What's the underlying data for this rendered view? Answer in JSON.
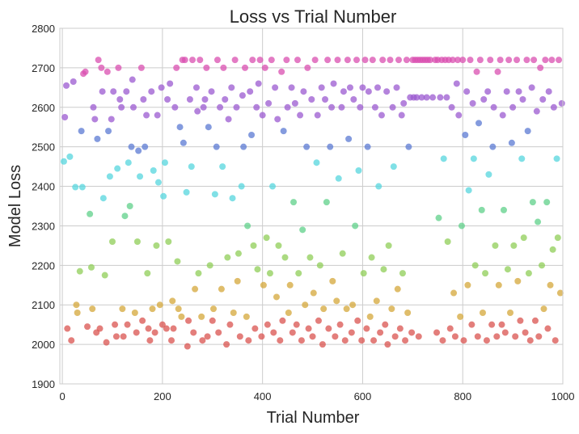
{
  "chart_data": {
    "type": "scatter",
    "title": "Loss vs Trial Number",
    "xlabel": "Trial Number",
    "ylabel": "Model Loss",
    "xlim": [
      -5,
      1000
    ],
    "ylim": [
      1900,
      2800
    ],
    "x_ticks": [
      0,
      200,
      400,
      600,
      800,
      1000
    ],
    "y_ticks": [
      1900,
      2000,
      2100,
      2200,
      2300,
      2400,
      2500,
      2600,
      2700,
      2800
    ],
    "grid": true,
    "legend": "none",
    "colors": {
      "background": "#ffffff",
      "grid": "#cccccc",
      "frame": "#cccccc",
      "text": "#262626",
      "band_2000": "#d9534f",
      "band_2100": "#d4a73a",
      "band_2200": "#8fce57",
      "band_2300": "#5fd08a",
      "band_2400": "#55d6dd",
      "band_2500": "#5b7ad3",
      "band_2600": "#9b59d0",
      "band_2700": "#d94fb0"
    },
    "points": [
      [
        3,
        2463
      ],
      [
        5,
        2575
      ],
      [
        8,
        2655
      ],
      [
        10,
        2040
      ],
      [
        15,
        2475
      ],
      [
        18,
        2010
      ],
      [
        22,
        2665
      ],
      [
        26,
        2398
      ],
      [
        28,
        2100
      ],
      [
        30,
        2080
      ],
      [
        35,
        2185
      ],
      [
        38,
        2540
      ],
      [
        40,
        2398
      ],
      [
        42,
        2685
      ],
      [
        46,
        2690
      ],
      [
        50,
        2045
      ],
      [
        55,
        2330
      ],
      [
        58,
        2195
      ],
      [
        60,
        2090
      ],
      [
        62,
        2600
      ],
      [
        65,
        2570
      ],
      [
        68,
        2030
      ],
      [
        70,
        2520
      ],
      [
        72,
        2720
      ],
      [
        75,
        2040
      ],
      [
        78,
        2700
      ],
      [
        80,
        2640
      ],
      [
        82,
        2370
      ],
      [
        85,
        2175
      ],
      [
        88,
        2005
      ],
      [
        90,
        2690
      ],
      [
        92,
        2540
      ],
      [
        95,
        2425
      ],
      [
        98,
        2570
      ],
      [
        100,
        2260
      ],
      [
        102,
        2640
      ],
      [
        105,
        2050
      ],
      [
        108,
        2020
      ],
      [
        110,
        2445
      ],
      [
        112,
        2700
      ],
      [
        115,
        2620
      ],
      [
        118,
        2600
      ],
      [
        120,
        2090
      ],
      [
        122,
        2020
      ],
      [
        125,
        2325
      ],
      [
        128,
        2640
      ],
      [
        130,
        2050
      ],
      [
        132,
        2460
      ],
      [
        135,
        2350
      ],
      [
        138,
        2500
      ],
      [
        140,
        2670
      ],
      [
        142,
        2600
      ],
      [
        145,
        2080
      ],
      [
        148,
        2030
      ],
      [
        150,
        2260
      ],
      [
        152,
        2490
      ],
      [
        155,
        2425
      ],
      [
        158,
        2700
      ],
      [
        160,
        2060
      ],
      [
        162,
        2620
      ],
      [
        165,
        2500
      ],
      [
        168,
        2580
      ],
      [
        170,
        2180
      ],
      [
        172,
        2040
      ],
      [
        175,
        2010
      ],
      [
        178,
        2640
      ],
      [
        180,
        2090
      ],
      [
        182,
        2440
      ],
      [
        185,
        2030
      ],
      [
        188,
        2250
      ],
      [
        190,
        2580
      ],
      [
        192,
        2410
      ],
      [
        195,
        2100
      ],
      [
        198,
        2650
      ],
      [
        200,
        2050
      ],
      [
        202,
        2375
      ],
      [
        205,
        2460
      ],
      [
        208,
        2040
      ],
      [
        210,
        2620
      ],
      [
        212,
        2260
      ],
      [
        215,
        2660
      ],
      [
        218,
        2010
      ],
      [
        220,
        2110
      ],
      [
        222,
        2040
      ],
      [
        225,
        2600
      ],
      [
        228,
        2700
      ],
      [
        230,
        2210
      ],
      [
        232,
        2090
      ],
      [
        235,
        2550
      ],
      [
        238,
        2070
      ],
      [
        240,
        2720
      ],
      [
        242,
        2510
      ],
      [
        245,
        2720
      ],
      [
        248,
        2385
      ],
      [
        250,
        1995
      ],
      [
        252,
        2060
      ],
      [
        255,
        2620
      ],
      [
        258,
        2450
      ],
      [
        260,
        2720
      ],
      [
        262,
        2030
      ],
      [
        265,
        2140
      ],
      [
        268,
        2650
      ],
      [
        270,
        2590
      ],
      [
        272,
        2180
      ],
      [
        275,
        2720
      ],
      [
        278,
        2070
      ],
      [
        280,
        2010
      ],
      [
        282,
        2600
      ],
      [
        285,
        2620
      ],
      [
        288,
        2700
      ],
      [
        290,
        2020
      ],
      [
        292,
        2550
      ],
      [
        295,
        2200
      ],
      [
        298,
        2640
      ],
      [
        300,
        2060
      ],
      [
        302,
        2090
      ],
      [
        305,
        2380
      ],
      [
        308,
        2500
      ],
      [
        310,
        2720
      ],
      [
        312,
        2030
      ],
      [
        315,
        2600
      ],
      [
        318,
        2140
      ],
      [
        320,
        2450
      ],
      [
        322,
        2700
      ],
      [
        325,
        2620
      ],
      [
        328,
        2000
      ],
      [
        330,
        2220
      ],
      [
        332,
        2570
      ],
      [
        335,
        2050
      ],
      [
        338,
        2650
      ],
      [
        340,
        2370
      ],
      [
        342,
        2080
      ],
      [
        345,
        2720
      ],
      [
        348,
        2600
      ],
      [
        350,
        2160
      ],
      [
        352,
        2230
      ],
      [
        355,
        2020
      ],
      [
        358,
        2400
      ],
      [
        360,
        2630
      ],
      [
        362,
        2500
      ],
      [
        365,
        2700
      ],
      [
        368,
        2070
      ],
      [
        370,
        2300
      ],
      [
        372,
        2010
      ],
      [
        375,
        2640
      ],
      [
        378,
        2530
      ],
      [
        380,
        2720
      ],
      [
        382,
        2250
      ],
      [
        385,
        2040
      ],
      [
        388,
        2600
      ],
      [
        390,
        2190
      ],
      [
        392,
        2660
      ],
      [
        395,
        2720
      ],
      [
        398,
        2020
      ],
      [
        400,
        2580
      ],
      [
        402,
        2150
      ],
      [
        405,
        2700
      ],
      [
        408,
        2270
      ],
      [
        410,
        2050
      ],
      [
        412,
        2610
      ],
      [
        415,
        2180
      ],
      [
        418,
        2720
      ],
      [
        420,
        2400
      ],
      [
        422,
        2030
      ],
      [
        425,
        2650
      ],
      [
        428,
        2120
      ],
      [
        430,
        2570
      ],
      [
        432,
        2250
      ],
      [
        435,
        2010
      ],
      [
        438,
        2690
      ],
      [
        440,
        2060
      ],
      [
        442,
        2540
      ],
      [
        445,
        2220
      ],
      [
        448,
        2720
      ],
      [
        450,
        2600
      ],
      [
        452,
        2080
      ],
      [
        455,
        2150
      ],
      [
        458,
        2650
      ],
      [
        460,
        2030
      ],
      [
        462,
        2360
      ],
      [
        465,
        2610
      ],
      [
        468,
        2050
      ],
      [
        470,
        2720
      ],
      [
        472,
        2180
      ],
      [
        475,
        2580
      ],
      [
        478,
        2010
      ],
      [
        480,
        2290
      ],
      [
        482,
        2640
      ],
      [
        485,
        2100
      ],
      [
        488,
        2500
      ],
      [
        490,
        2700
      ],
      [
        492,
        2040
      ],
      [
        495,
        2220
      ],
      [
        498,
        2620
      ],
      [
        500,
        2020
      ],
      [
        502,
        2130
      ],
      [
        505,
        2720
      ],
      [
        508,
        2460
      ],
      [
        510,
        2580
      ],
      [
        512,
        2060
      ],
      [
        515,
        2200
      ],
      [
        518,
        2650
      ],
      [
        520,
        2000
      ],
      [
        522,
        2090
      ],
      [
        525,
        2620
      ],
      [
        528,
        2360
      ],
      [
        530,
        2720
      ],
      [
        532,
        2040
      ],
      [
        535,
        2500
      ],
      [
        538,
        2600
      ],
      [
        540,
        2160
      ],
      [
        542,
        2660
      ],
      [
        545,
        2020
      ],
      [
        548,
        2110
      ],
      [
        550,
        2720
      ],
      [
        552,
        2420
      ],
      [
        555,
        2050
      ],
      [
        558,
        2600
      ],
      [
        560,
        2230
      ],
      [
        562,
        2640
      ],
      [
        565,
        2010
      ],
      [
        568,
        2090
      ],
      [
        570,
        2720
      ],
      [
        572,
        2520
      ],
      [
        575,
        2650
      ],
      [
        578,
        2030
      ],
      [
        580,
        2100
      ],
      [
        582,
        2620
      ],
      [
        585,
        2300
      ],
      [
        588,
        2720
      ],
      [
        590,
        2060
      ],
      [
        592,
        2440
      ],
      [
        595,
        2600
      ],
      [
        598,
        2010
      ],
      [
        600,
        2650
      ],
      [
        602,
        2180
      ],
      [
        605,
        2720
      ],
      [
        608,
        2040
      ],
      [
        610,
        2500
      ],
      [
        612,
        2640
      ],
      [
        615,
        2070
      ],
      [
        618,
        2220
      ],
      [
        620,
        2720
      ],
      [
        622,
        2010
      ],
      [
        625,
        2600
      ],
      [
        628,
        2110
      ],
      [
        630,
        2650
      ],
      [
        632,
        2400
      ],
      [
        635,
        2030
      ],
      [
        638,
        2580
      ],
      [
        640,
        2720
      ],
      [
        642,
        2190
      ],
      [
        645,
        2050
      ],
      [
        648,
        2640
      ],
      [
        650,
        2000
      ],
      [
        652,
        2250
      ],
      [
        655,
        2720
      ],
      [
        658,
        2090
      ],
      [
        660,
        2600
      ],
      [
        662,
        2450
      ],
      [
        665,
        2020
      ],
      [
        668,
        2650
      ],
      [
        670,
        2140
      ],
      [
        672,
        2720
      ],
      [
        675,
        2040
      ],
      [
        678,
        2580
      ],
      [
        680,
        2180
      ],
      [
        682,
        2610
      ],
      [
        685,
        2010
      ],
      [
        688,
        2720
      ],
      [
        690,
        2080
      ],
      [
        692,
        2500
      ],
      [
        695,
        2625
      ],
      [
        698,
        2030
      ],
      [
        700,
        2720
      ],
      [
        702,
        2625
      ],
      [
        705,
        2720
      ],
      [
        708,
        2625
      ],
      [
        710,
        2720
      ],
      [
        712,
        2020
      ],
      [
        715,
        2720
      ],
      [
        718,
        2625
      ],
      [
        720,
        2720
      ],
      [
        725,
        2720
      ],
      [
        728,
        2625
      ],
      [
        730,
        2720
      ],
      [
        735,
        2720
      ],
      [
        740,
        2625
      ],
      [
        745,
        2720
      ],
      [
        748,
        2030
      ],
      [
        750,
        2720
      ],
      [
        752,
        2320
      ],
      [
        755,
        2625
      ],
      [
        758,
        2720
      ],
      [
        760,
        2010
      ],
      [
        762,
        2470
      ],
      [
        765,
        2720
      ],
      [
        768,
        2625
      ],
      [
        770,
        2260
      ],
      [
        772,
        2720
      ],
      [
        775,
        2040
      ],
      [
        778,
        2600
      ],
      [
        780,
        2720
      ],
      [
        782,
        2130
      ],
      [
        785,
        2020
      ],
      [
        788,
        2660
      ],
      [
        790,
        2720
      ],
      [
        792,
        2580
      ],
      [
        795,
        2070
      ],
      [
        798,
        2300
      ],
      [
        800,
        2720
      ],
      [
        802,
        2010
      ],
      [
        805,
        2530
      ],
      [
        808,
        2640
      ],
      [
        810,
        2150
      ],
      [
        812,
        2390
      ],
      [
        815,
        2720
      ],
      [
        818,
        2050
      ],
      [
        820,
        2610
      ],
      [
        822,
        2470
      ],
      [
        825,
        2200
      ],
      [
        828,
        2690
      ],
      [
        830,
        2020
      ],
      [
        832,
        2560
      ],
      [
        835,
        2720
      ],
      [
        838,
        2340
      ],
      [
        840,
        2080
      ],
      [
        842,
        2620
      ],
      [
        845,
        2180
      ],
      [
        848,
        2010
      ],
      [
        850,
        2640
      ],
      [
        852,
        2430
      ],
      [
        855,
        2720
      ],
      [
        858,
        2050
      ],
      [
        860,
        2500
      ],
      [
        862,
        2600
      ],
      [
        865,
        2250
      ],
      [
        868,
        2020
      ],
      [
        870,
        2690
      ],
      [
        872,
        2150
      ],
      [
        875,
        2720
      ],
      [
        878,
        2050
      ],
      [
        880,
        2580
      ],
      [
        882,
        2340
      ],
      [
        885,
        2030
      ],
      [
        888,
        2640
      ],
      [
        890,
        2190
      ],
      [
        892,
        2720
      ],
      [
        895,
        2080
      ],
      [
        898,
        2510
      ],
      [
        900,
        2600
      ],
      [
        902,
        2250
      ],
      [
        905,
        2020
      ],
      [
        908,
        2720
      ],
      [
        910,
        2160
      ],
      [
        912,
        2640
      ],
      [
        915,
        2060
      ],
      [
        918,
        2470
      ],
      [
        920,
        2620
      ],
      [
        922,
        2270
      ],
      [
        925,
        2030
      ],
      [
        928,
        2720
      ],
      [
        930,
        2540
      ],
      [
        932,
        2180
      ],
      [
        935,
        2010
      ],
      [
        938,
        2650
      ],
      [
        940,
        2360
      ],
      [
        942,
        2720
      ],
      [
        945,
        2060
      ],
      [
        948,
        2590
      ],
      [
        950,
        2310
      ],
      [
        952,
        2020
      ],
      [
        955,
        2700
      ],
      [
        958,
        2200
      ],
      [
        960,
        2620
      ],
      [
        962,
        2090
      ],
      [
        965,
        2720
      ],
      [
        968,
        2360
      ],
      [
        970,
        2040
      ],
      [
        972,
        2640
      ],
      [
        975,
        2150
      ],
      [
        978,
        2720
      ],
      [
        980,
        2240
      ],
      [
        982,
        2600
      ],
      [
        985,
        2010
      ],
      [
        988,
        2470
      ],
      [
        990,
        2270
      ],
      [
        992,
        2720
      ],
      [
        995,
        2130
      ],
      [
        998,
        2610
      ]
    ]
  }
}
